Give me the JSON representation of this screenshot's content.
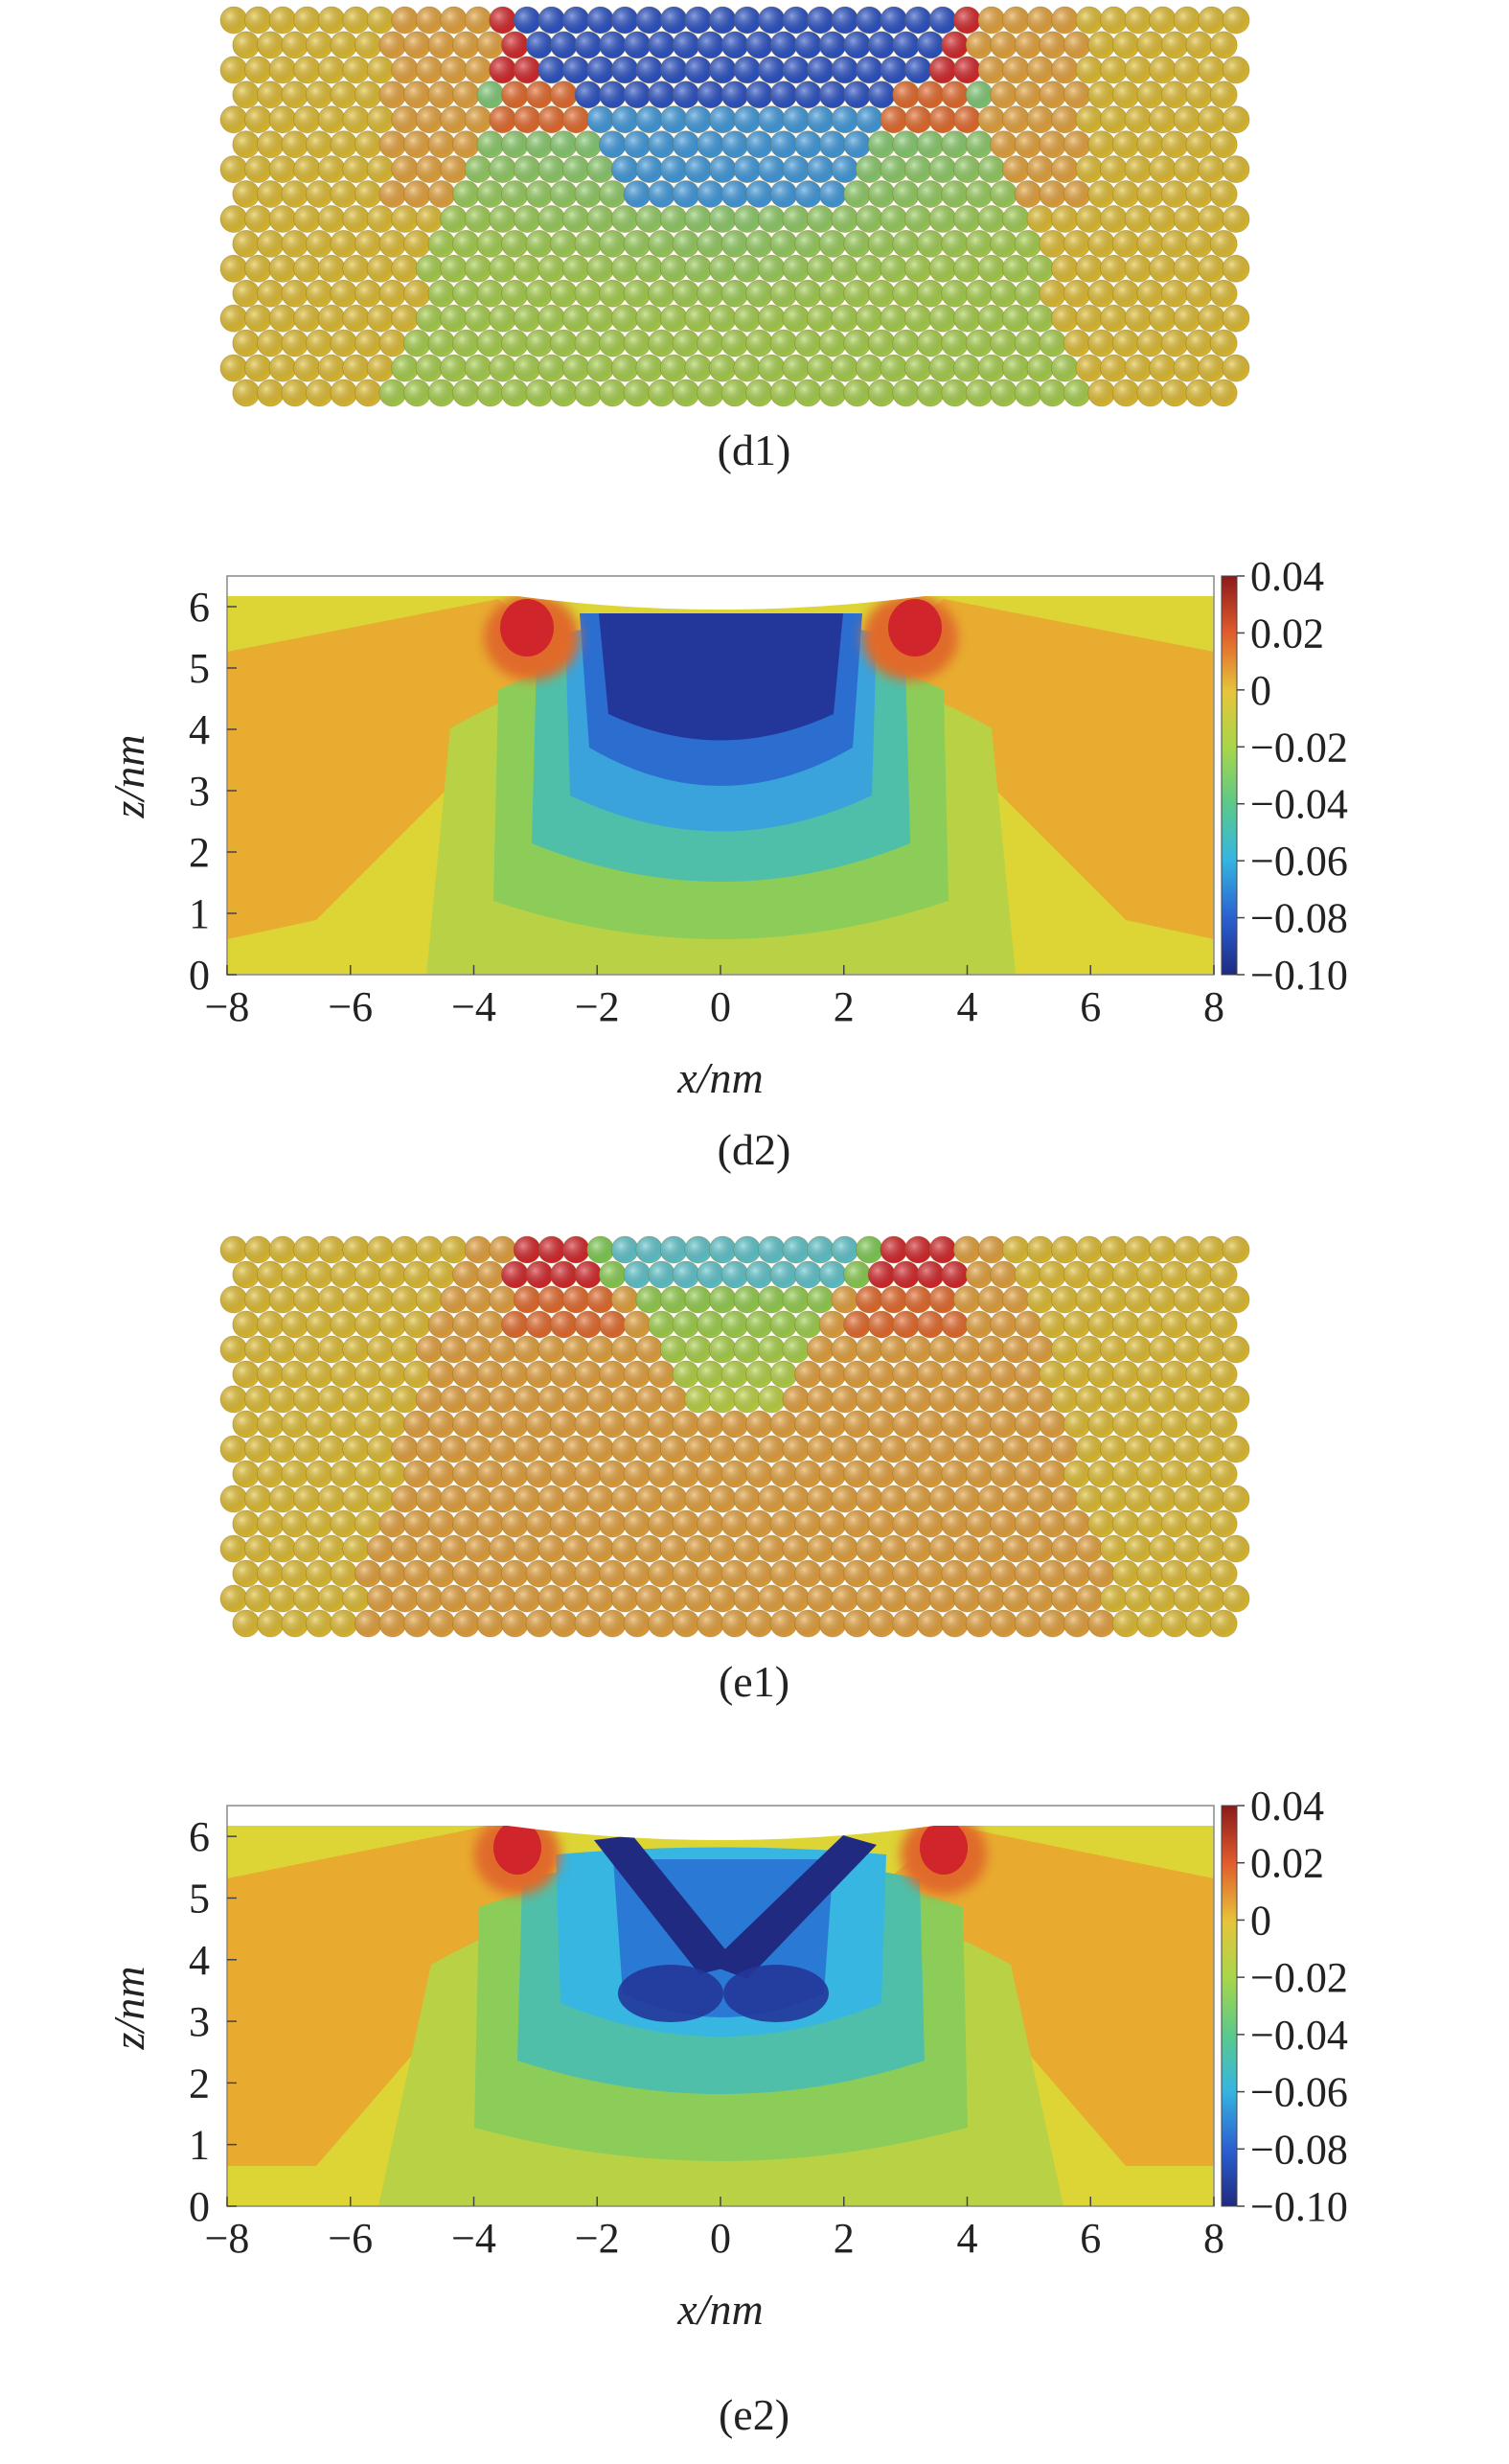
{
  "chart_data": [
    {
      "type": "scatter",
      "caption": "(d1)",
      "description_key": "atom-map",
      "lattice": {
        "columns": 42,
        "rows": 16
      }
    },
    {
      "type": "heatmap",
      "caption": "(d2)",
      "xlabel": "x/nm",
      "ylabel": "z/nm",
      "xlim": [
        -8,
        8
      ],
      "ylim": [
        0,
        6.5
      ],
      "x_ticks": [
        "−8",
        "−6",
        "−4",
        "−2",
        "0",
        "2",
        "4",
        "6",
        "8"
      ],
      "y_ticks": [
        "0",
        "1",
        "2",
        "3",
        "4",
        "5",
        "6"
      ],
      "colorbar": {
        "min": -0.1,
        "max": 0.04,
        "ticks": [
          "0.04",
          "0.02",
          "0",
          "−0.02",
          "−0.04",
          "−0.06",
          "−0.08",
          "−0.10"
        ]
      }
    },
    {
      "type": "scatter",
      "caption": "(e1)",
      "lattice": {
        "columns": 42,
        "rows": 16
      }
    },
    {
      "type": "heatmap",
      "caption": "(e2)",
      "xlabel": "x/nm",
      "ylabel": "z/nm",
      "xlim": [
        -8,
        8
      ],
      "ylim": [
        0,
        6.5
      ],
      "x_ticks": [
        "−8",
        "−6",
        "−4",
        "−2",
        "0",
        "2",
        "4",
        "6",
        "8"
      ],
      "y_ticks": [
        "0",
        "1",
        "2",
        "3",
        "4",
        "5",
        "6"
      ],
      "colorbar": {
        "min": -0.1,
        "max": 0.04,
        "ticks": [
          "0.04",
          "0.02",
          "0",
          "−0.02",
          "−0.04",
          "−0.06",
          "−0.08",
          "−0.10"
        ]
      }
    }
  ]
}
